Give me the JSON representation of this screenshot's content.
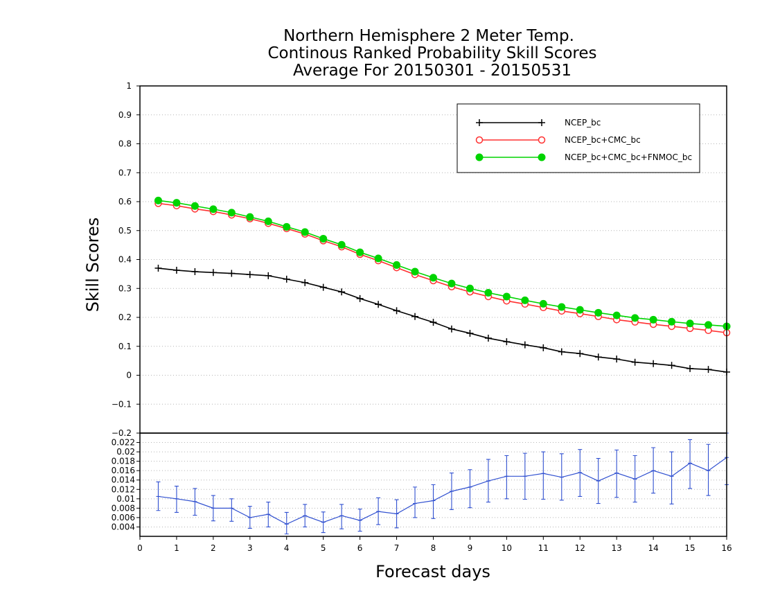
{
  "chart_data": [
    {
      "type": "line",
      "title": [
        "Northern Hemisphere 2 Meter Temp.",
        "Continous Ranked Probability Skill Scores",
        "Average For 20150301 - 20150531"
      ],
      "xlabel": "Forecast days",
      "ylabel": "Skill Scores",
      "xlim": [
        0,
        16
      ],
      "ylim": [
        -0.2,
        1
      ],
      "x_ticks": [
        0,
        1,
        2,
        3,
        4,
        5,
        6,
        7,
        8,
        9,
        10,
        11,
        12,
        13,
        14,
        15,
        16
      ],
      "y_ticks": [
        -0.2,
        -0.1,
        0,
        0.1,
        0.2,
        0.3,
        0.4,
        0.5,
        0.6,
        0.7,
        0.8,
        0.9,
        1
      ],
      "grid": "dotted horizontal",
      "legend_position": "top-right",
      "x": [
        0.5,
        1,
        1.5,
        2,
        2.5,
        3,
        3.5,
        4,
        4.5,
        5,
        5.5,
        6,
        6.5,
        7,
        7.5,
        8,
        8.5,
        9,
        9.5,
        10,
        10.5,
        11,
        11.5,
        12,
        12.5,
        13,
        13.5,
        14,
        14.5,
        15,
        15.5,
        16
      ],
      "series": [
        {
          "name": "NCEP_bc",
          "color": "#000000",
          "marker": "plus",
          "values": [
            0.37,
            0.363,
            0.358,
            0.355,
            0.352,
            0.348,
            0.344,
            0.332,
            0.32,
            0.304,
            0.288,
            0.265,
            0.245,
            0.223,
            0.203,
            0.183,
            0.16,
            0.145,
            0.128,
            0.116,
            0.105,
            0.095,
            0.081,
            0.075,
            0.063,
            0.056,
            0.045,
            0.04,
            0.034,
            0.023,
            0.02,
            0.011
          ]
        },
        {
          "name": "NCEP_bc+CMC_bc",
          "color": "#ff3030",
          "marker": "open-circle",
          "values": [
            0.594,
            0.586,
            0.575,
            0.566,
            0.554,
            0.541,
            0.525,
            0.507,
            0.488,
            0.465,
            0.444,
            0.418,
            0.396,
            0.372,
            0.348,
            0.327,
            0.306,
            0.288,
            0.272,
            0.257,
            0.246,
            0.234,
            0.222,
            0.213,
            0.203,
            0.192,
            0.184,
            0.176,
            0.169,
            0.162,
            0.155,
            0.147
          ]
        },
        {
          "name": "NCEP_bc+CMC_bc+FNMOC_bc",
          "color": "#00d400",
          "marker": "filled-circle",
          "values": [
            0.604,
            0.596,
            0.585,
            0.574,
            0.562,
            0.547,
            0.532,
            0.513,
            0.495,
            0.472,
            0.451,
            0.425,
            0.404,
            0.381,
            0.358,
            0.337,
            0.317,
            0.3,
            0.285,
            0.272,
            0.259,
            0.247,
            0.236,
            0.226,
            0.216,
            0.207,
            0.198,
            0.192,
            0.185,
            0.179,
            0.174,
            0.169
          ]
        }
      ]
    },
    {
      "type": "line",
      "xlim": [
        0,
        16
      ],
      "ylim": [
        0.002,
        0.024
      ],
      "y_ticks": [
        0.004,
        0.006,
        0.008,
        0.01,
        0.012,
        0.014,
        0.016,
        0.018,
        0.02,
        0.022
      ],
      "grid": "dotted horizontal",
      "x": [
        0.5,
        1,
        1.5,
        2,
        2.5,
        3,
        3.5,
        4,
        4.5,
        5,
        5.5,
        6,
        6.5,
        7,
        7.5,
        8,
        8.5,
        9,
        9.5,
        10,
        10.5,
        11,
        11.5,
        12,
        12.5,
        13,
        13.5,
        14,
        14.5,
        15,
        15.5,
        16
      ],
      "series": [
        {
          "color": "#3050d0",
          "marker": "error-bar",
          "values": [
            0.0105,
            0.01,
            0.0094,
            0.008,
            0.008,
            0.006,
            0.0067,
            0.0046,
            0.0064,
            0.005,
            0.0064,
            0.0054,
            0.0073,
            0.0068,
            0.009,
            0.0096,
            0.0116,
            0.0125,
            0.0138,
            0.0148,
            0.0148,
            0.0154,
            0.0146,
            0.0156,
            0.0138,
            0.0155,
            0.0142,
            0.016,
            0.0148,
            0.0176,
            0.016,
            0.0188
          ],
          "lower": [
            0.0075,
            0.0071,
            0.0065,
            0.0053,
            0.0052,
            0.0037,
            0.004,
            0.0025,
            0.004,
            0.0028,
            0.0036,
            0.0031,
            0.0045,
            0.0038,
            0.006,
            0.0058,
            0.0077,
            0.0081,
            0.0093,
            0.01,
            0.0099,
            0.0099,
            0.0097,
            0.0105,
            0.009,
            0.0103,
            0.0093,
            0.0112,
            0.0089,
            0.0122,
            0.0107,
            0.013
          ],
          "upper": [
            0.0136,
            0.0127,
            0.0122,
            0.0107,
            0.01,
            0.0084,
            0.0093,
            0.0071,
            0.0088,
            0.0072,
            0.0088,
            0.0078,
            0.0102,
            0.0098,
            0.0125,
            0.013,
            0.0155,
            0.0162,
            0.0184,
            0.0192,
            0.0197,
            0.02,
            0.0196,
            0.0205,
            0.0186,
            0.0204,
            0.0192,
            0.0209,
            0.02,
            0.0226,
            0.0216,
            0.024
          ]
        }
      ]
    }
  ]
}
